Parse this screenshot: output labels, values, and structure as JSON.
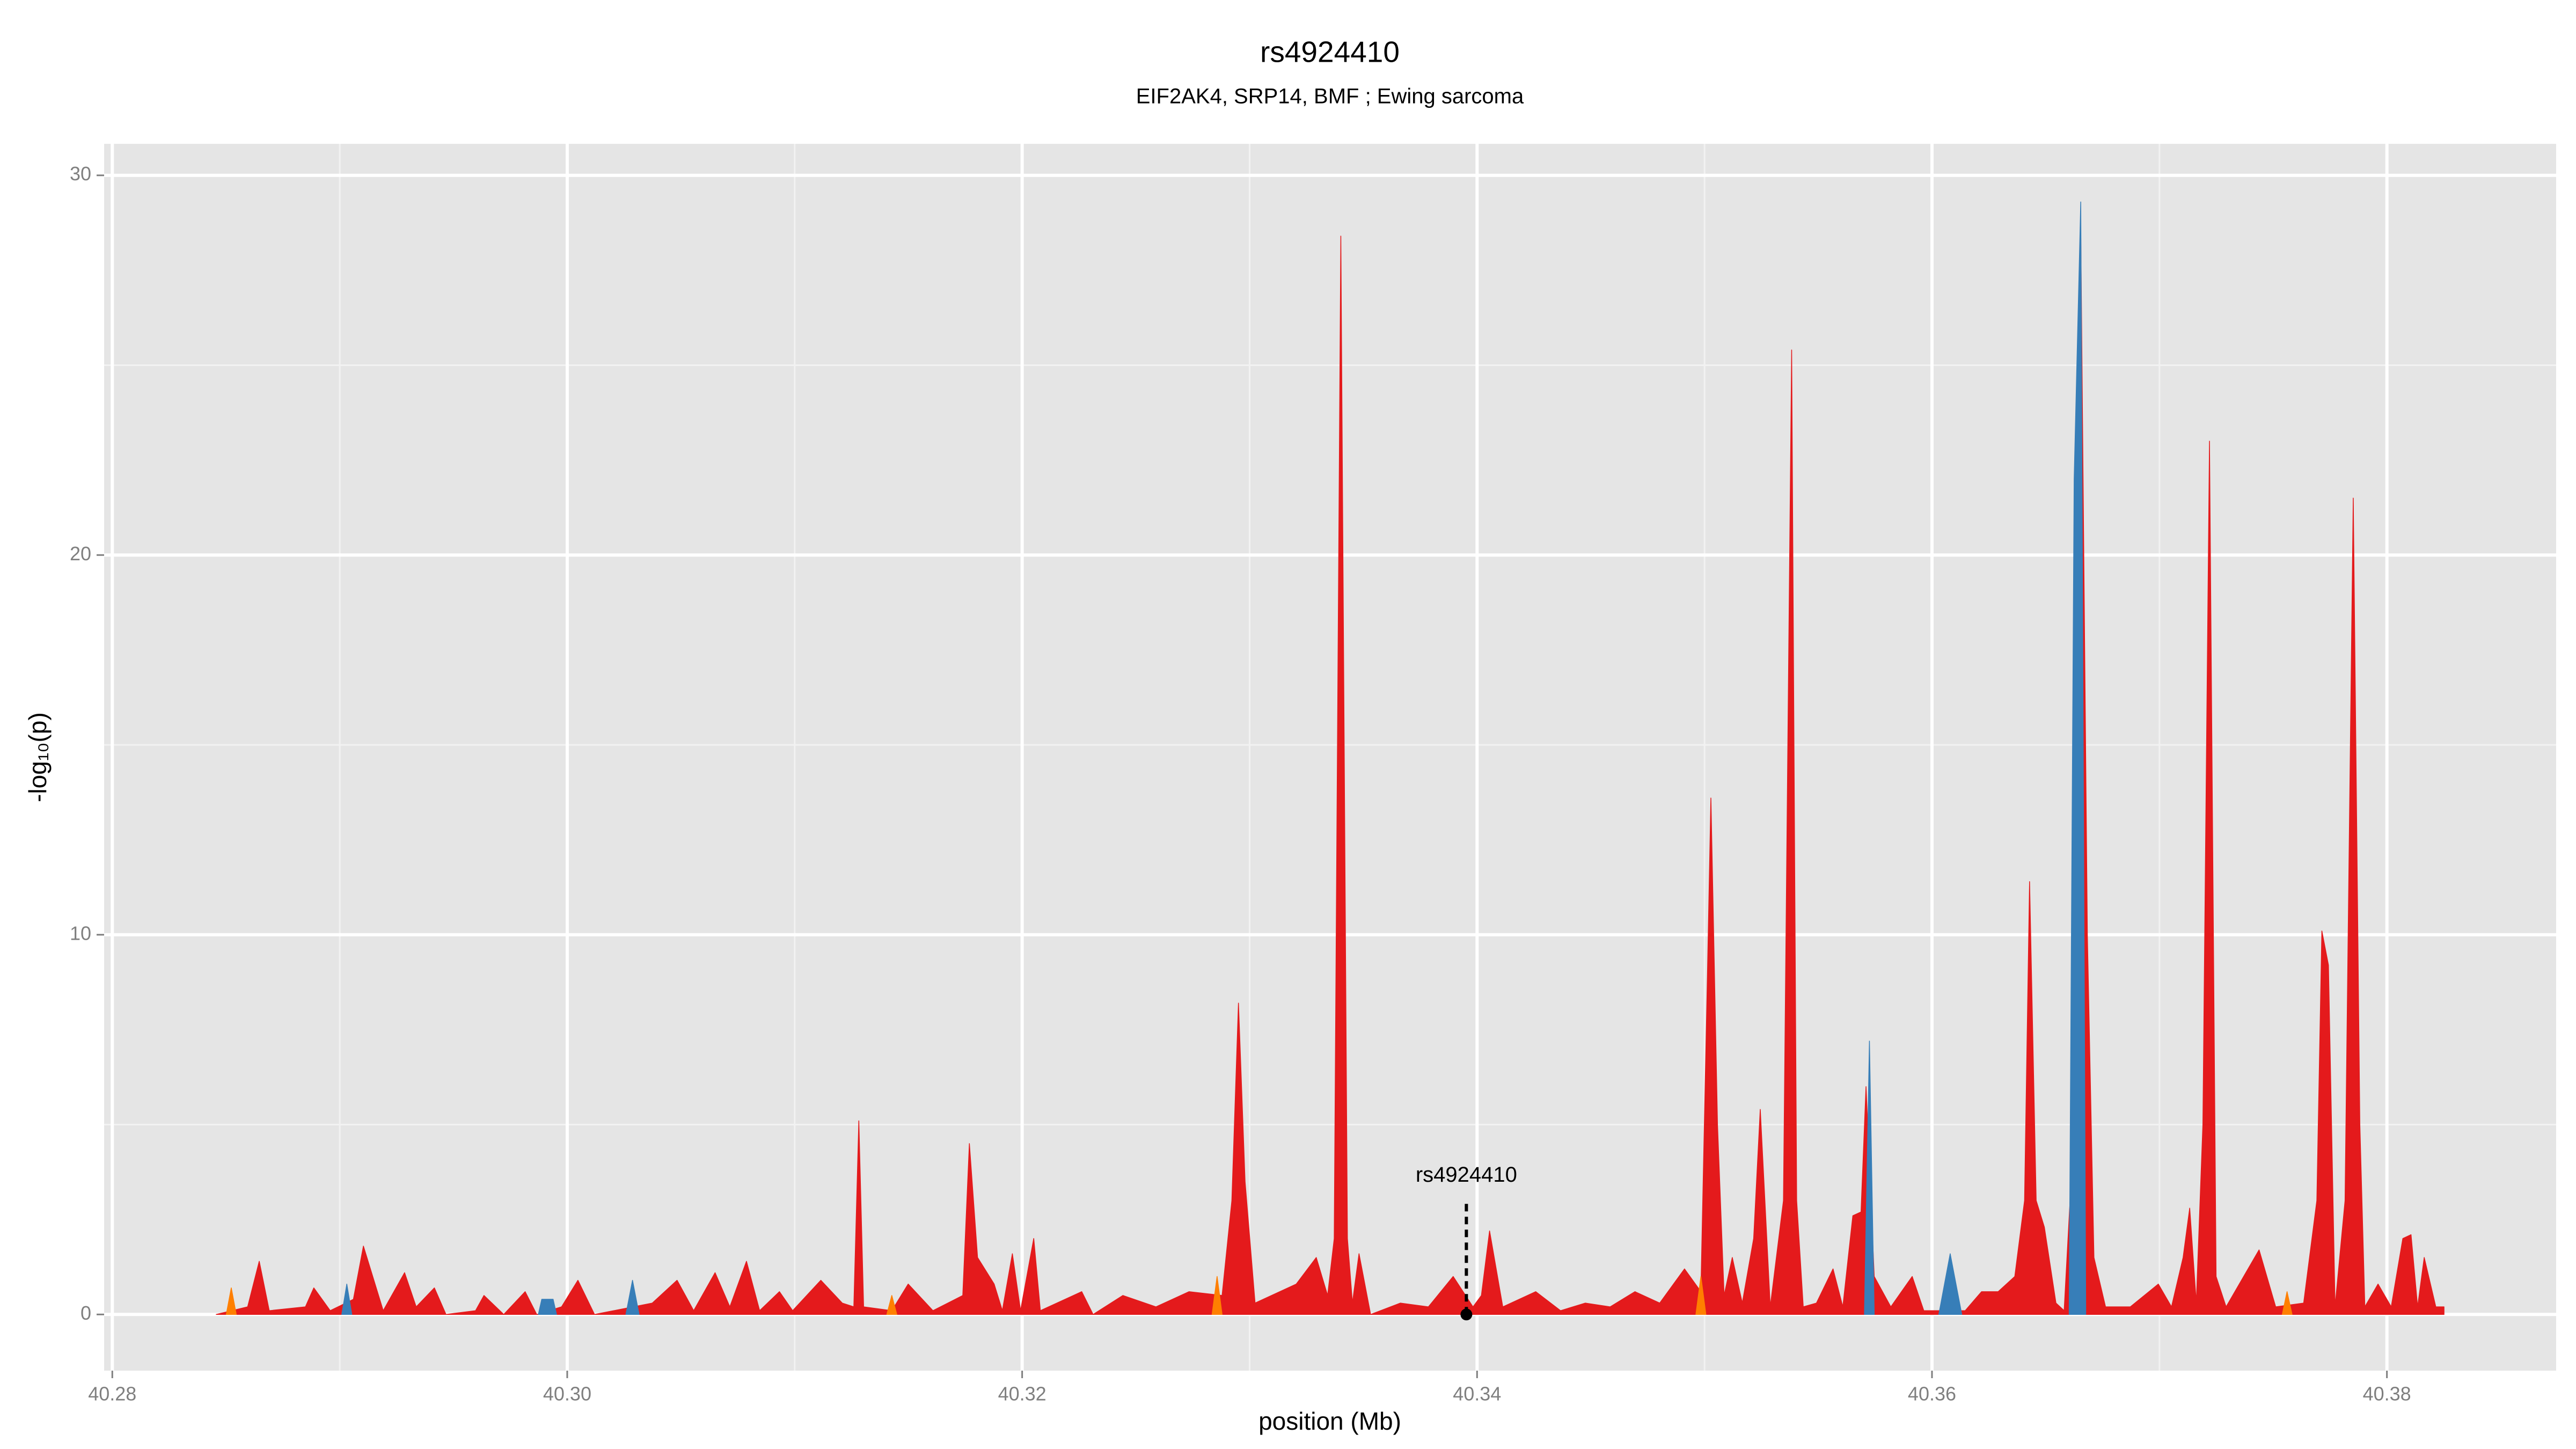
{
  "chart_data": {
    "type": "area",
    "title": "rs4924410",
    "subtitle": "EIF2AK4, SRP14, BMF ; Ewing sarcoma",
    "x_label": "position (Mb)",
    "y_label": "-log₁₀(p)",
    "xlim": [
      40.27964,
      40.38744
    ],
    "ylim": [
      -1.48,
      30.83
    ],
    "xticks": [
      {
        "value": 40.28,
        "label": "40.28"
      },
      {
        "value": 40.3,
        "label": "40.30"
      },
      {
        "value": 40.32,
        "label": "40.32"
      },
      {
        "value": 40.34,
        "label": "40.34"
      },
      {
        "value": 40.36,
        "label": "40.36"
      },
      {
        "value": 40.38,
        "label": "40.38"
      }
    ],
    "yticks": [
      0,
      10,
      20,
      30
    ],
    "grid": true,
    "annotation": {
      "text": "rs4924410",
      "x": 40.33953
    },
    "series": [
      {
        "color": "#e41a1c",
        "x": [
          40.28457,
          40.28595,
          40.28646,
          40.2869,
          40.28849,
          40.28886,
          40.28958,
          40.2906,
          40.29104,
          40.29191,
          40.29285,
          40.29336,
          40.29416,
          40.29467,
          40.29597,
          40.29634,
          40.29721,
          40.29815,
          40.29866,
          40.29975,
          40.30047,
          40.3012,
          40.30374,
          40.30483,
          40.30556,
          40.3065,
          40.30715,
          40.30788,
          40.30846,
          40.30933,
          40.30991,
          40.31115,
          40.31209,
          40.3126,
          40.31282,
          40.31303,
          40.31427,
          40.31499,
          40.31608,
          40.31739,
          40.31768,
          40.31804,
          40.31877,
          40.31913,
          40.31957,
          40.31993,
          40.32051,
          40.3208,
          40.32262,
          40.32312,
          40.32443,
          40.32588,
          40.32734,
          40.32879,
          40.32922,
          40.32951,
          40.3298,
          40.33024,
          40.33205,
          40.33293,
          40.33343,
          40.33372,
          40.33401,
          40.3343,
          40.33452,
          40.33481,
          40.33532,
          40.33663,
          40.33786,
          40.33895,
          40.33982,
          40.34019,
          40.34055,
          40.34113,
          40.34258,
          40.34367,
          40.34476,
          40.34585,
          40.34694,
          40.34803,
          40.34912,
          40.34984,
          40.35013,
          40.35028,
          40.35057,
          40.35086,
          40.35122,
          40.35166,
          40.35216,
          40.35245,
          40.35289,
          40.35347,
          40.35383,
          40.35405,
          40.35434,
          40.35492,
          40.35565,
          40.35608,
          40.35652,
          40.35688,
          40.3571,
          40.35746,
          40.35819,
          40.35913,
          40.35964,
          40.36146,
          40.36218,
          40.36291,
          40.36364,
          40.36407,
          40.36429,
          40.36458,
          40.36494,
          40.36545,
          40.36581,
          40.36625,
          40.36654,
          40.36683,
          40.36712,
          40.36763,
          40.36872,
          40.36995,
          40.37053,
          40.37104,
          40.37133,
          40.37162,
          40.37191,
          40.3722,
          40.37249,
          40.37293,
          40.37438,
          40.37511,
          40.37634,
          40.37692,
          40.37714,
          40.37743,
          40.37772,
          40.37816,
          40.37852,
          40.37881,
          40.37903,
          40.37961,
          40.38019,
          40.3807,
          40.38106,
          40.38135,
          40.38164,
          40.38215,
          40.38251
        ],
        "values": [
          0,
          0.2,
          1.4,
          0.1,
          0.2,
          0.7,
          0.1,
          0.4,
          1.8,
          0.1,
          1.1,
          0.2,
          0.7,
          0,
          0.1,
          0.5,
          0,
          0.6,
          0,
          0.2,
          0.9,
          0,
          0.3,
          0.9,
          0.1,
          1.1,
          0.2,
          1.4,
          0.1,
          0.6,
          0.1,
          0.9,
          0.3,
          0.2,
          5.1,
          0.2,
          0.1,
          0.8,
          0.1,
          0.5,
          4.5,
          1.5,
          0.8,
          0.1,
          1.6,
          0.1,
          2.0,
          0.1,
          0.6,
          0,
          0.5,
          0.2,
          0.6,
          0.5,
          3,
          8.2,
          3.5,
          0.3,
          0.8,
          1.5,
          0.5,
          2,
          28.4,
          2,
          0.3,
          1.6,
          0,
          0.3,
          0.2,
          1.0,
          0.2,
          0.5,
          2.2,
          0.2,
          0.6,
          0.1,
          0.3,
          0.2,
          0.6,
          0.3,
          1.2,
          0.6,
          9,
          13.6,
          5,
          0.5,
          1.5,
          0.3,
          2,
          5.4,
          0.2,
          3,
          25.4,
          3,
          0.2,
          0.3,
          1.2,
          0.2,
          2.6,
          2.7,
          6,
          1,
          0.2,
          1.0,
          0.1,
          0.1,
          0.6,
          0.6,
          1.0,
          3,
          11.4,
          3,
          2.3,
          0.3,
          0.1,
          5,
          28.5,
          10,
          1.5,
          0.2,
          0.2,
          0.8,
          0.2,
          1.5,
          2.8,
          0.3,
          5,
          23.0,
          1,
          0.2,
          1.7,
          0.2,
          0.3,
          3,
          10.1,
          9.2,
          0.2,
          3,
          21.5,
          5,
          0.2,
          0.8,
          0.2,
          2.0,
          2.1,
          0.2,
          1.5,
          0.2,
          0.2
        ]
      },
      {
        "color": "#377eb8",
        "x": [
          40.29009,
          40.29031,
          40.29053,
          null,
          40.29873,
          40.29888,
          40.29938,
          40.29953,
          null,
          40.30258,
          40.30287,
          40.30316,
          null,
          40.35703,
          40.35725,
          40.35746,
          null,
          40.3603,
          40.3608,
          40.36131,
          null,
          40.36603,
          40.36625,
          40.36654,
          40.36676
        ],
        "values": [
          0,
          0.8,
          0,
          null,
          0,
          0.4,
          0.4,
          0,
          null,
          0,
          0.9,
          0,
          null,
          0,
          7.2,
          0,
          null,
          0,
          1.6,
          0,
          null,
          0,
          22,
          29.3,
          0
        ]
      },
      {
        "color": "#ff7f00",
        "x": [
          40.28501,
          40.28523,
          40.28545,
          null,
          40.31405,
          40.31427,
          40.31449,
          null,
          40.32835,
          40.32857,
          40.32879,
          null,
          40.34962,
          40.34984,
          40.35006,
          null,
          40.3754,
          40.37561,
          40.37583
        ],
        "values": [
          0,
          0.7,
          0,
          null,
          0,
          0.5,
          0,
          null,
          0,
          1.0,
          0,
          null,
          0,
          1.0,
          0,
          null,
          0,
          0.6,
          0
        ]
      }
    ]
  }
}
